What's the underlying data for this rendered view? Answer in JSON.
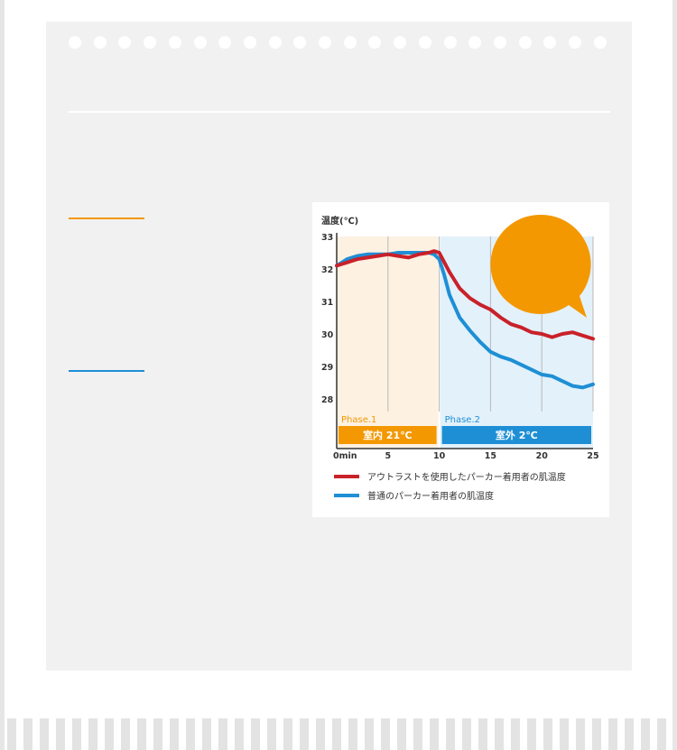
{
  "chart_data": {
    "type": "line",
    "ylabel": "温度(℃)",
    "ylim": [
      27,
      33
    ],
    "yticks": [
      28,
      29,
      30,
      31,
      32,
      33
    ],
    "xlim": [
      0,
      25
    ],
    "xticks": [
      0,
      5,
      10,
      15,
      20,
      25
    ],
    "xtick_labels": [
      "0min",
      "5",
      "10",
      "15",
      "20",
      "25"
    ],
    "grid": "vertical",
    "legend_position": "bottom",
    "phases": [
      {
        "name": "Phase.1",
        "label": "室内 21℃",
        "range": [
          0,
          10
        ],
        "color": "#f39800",
        "bg": "#fdf1e2"
      },
      {
        "name": "Phase.2",
        "label": "室外 2℃",
        "range": [
          10,
          25
        ],
        "color": "#1e8fd5",
        "bg": "#e3f1fa"
      }
    ],
    "series": [
      {
        "name": "アウトラストを使用したパーカー着用者の肌温度",
        "color": "#c9212a",
        "x": [
          0,
          1,
          2,
          3,
          4,
          5,
          6,
          7,
          8,
          9,
          9.5,
          10,
          10.5,
          11,
          12,
          13,
          14,
          15,
          16,
          17,
          18,
          19,
          20,
          21,
          22,
          23,
          24,
          25
        ],
        "y": [
          32.1,
          32.2,
          32.3,
          32.35,
          32.4,
          32.45,
          32.4,
          32.35,
          32.45,
          32.5,
          32.55,
          32.5,
          32.2,
          31.9,
          31.4,
          31.1,
          30.9,
          30.75,
          30.5,
          30.3,
          30.2,
          30.05,
          30.0,
          29.9,
          30.0,
          30.05,
          29.95,
          29.85
        ]
      },
      {
        "name": "普通のパーカー着用者の肌温度",
        "color": "#1e8fd5",
        "x": [
          0,
          1,
          2,
          3,
          4,
          5,
          6,
          7,
          8,
          9,
          9.5,
          10,
          10.5,
          11,
          12,
          13,
          14,
          15,
          16,
          17,
          18,
          19,
          20,
          21,
          22,
          23,
          24,
          25
        ],
        "y": [
          32.1,
          32.3,
          32.4,
          32.45,
          32.45,
          32.45,
          32.5,
          32.5,
          32.5,
          32.5,
          32.45,
          32.3,
          31.8,
          31.2,
          30.5,
          30.1,
          29.75,
          29.45,
          29.3,
          29.2,
          29.05,
          28.9,
          28.75,
          28.7,
          28.55,
          28.4,
          28.35,
          28.45
        ]
      }
    ]
  },
  "ui": {
    "accent_orange": "#f39800",
    "accent_blue": "#1e8fd5",
    "bubble_color": "#f39800"
  }
}
